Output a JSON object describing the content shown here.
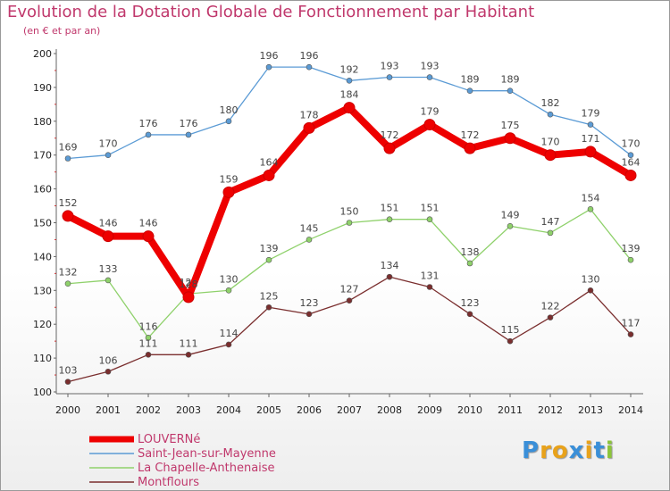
{
  "title": "Evolution de la Dotation Globale de Fonctionnement par Habitant",
  "subtitle": "(en € et par an)",
  "chart_data": {
    "type": "line",
    "title": "Evolution de la Dotation Globale de Fonctionnement par Habitant",
    "subtitle": "(en € et par an)",
    "xlabel": "",
    "ylabel": "",
    "x": [
      "2000",
      "2001",
      "2002",
      "2003",
      "2004",
      "2005",
      "2006",
      "2007",
      "2008",
      "2009",
      "2010",
      "2011",
      "2012",
      "2013",
      "2014"
    ],
    "ylim": [
      100,
      200
    ],
    "yticks": [
      100,
      110,
      120,
      130,
      140,
      150,
      160,
      170,
      180,
      190,
      200
    ],
    "series": [
      {
        "name": "Saint-Jean-sur-Mayenne",
        "color": "#5b9bd5",
        "bold": false,
        "values": [
          169,
          170,
          176,
          176,
          180,
          196,
          196,
          192,
          193,
          193,
          189,
          189,
          182,
          179,
          170
        ]
      },
      {
        "name": "La Chapelle-Anthenaise",
        "color": "#8fd16b",
        "bold": false,
        "values": [
          132,
          133,
          116,
          129,
          130,
          139,
          145,
          150,
          151,
          151,
          138,
          149,
          147,
          154,
          139
        ]
      },
      {
        "name": "Montflours",
        "color": "#7a2e2e",
        "bold": false,
        "values": [
          103,
          106,
          111,
          111,
          114,
          125,
          123,
          127,
          134,
          131,
          123,
          115,
          122,
          130,
          117
        ]
      },
      {
        "name": "LOUVERNé",
        "color": "#ee0000",
        "bold": true,
        "values": [
          152,
          146,
          146,
          128,
          159,
          164,
          178,
          184,
          172,
          179,
          172,
          175,
          170,
          171,
          164
        ]
      }
    ],
    "legend": [
      "LOUVERNé",
      "Saint-Jean-sur-Mayenne",
      "La Chapelle-Anthenaise",
      "Montflours"
    ],
    "legend_position": "bottom-left",
    "grid": false
  },
  "logo": {
    "letters": [
      "P",
      "r",
      "o",
      "x",
      "i",
      "t",
      "i"
    ],
    "colors": [
      "#3a8fd8",
      "#e8a21b",
      "#e8a21b",
      "#3a8fd8",
      "#e8a21b",
      "#3a8fd8",
      "#8cc43a"
    ]
  }
}
